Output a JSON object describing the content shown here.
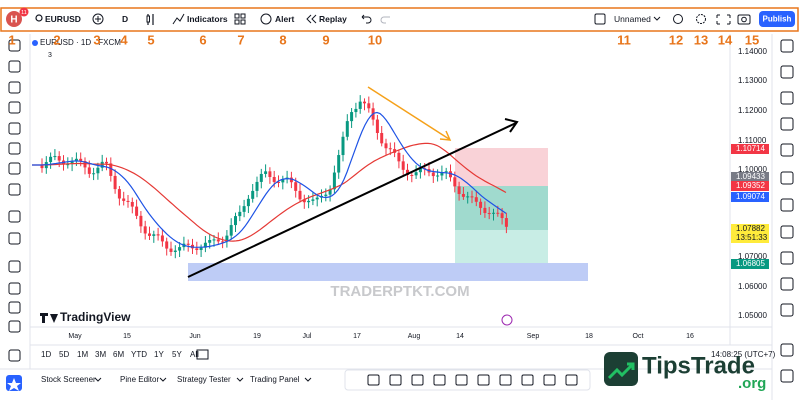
{
  "toolbar": {
    "avatar": "H",
    "badge": "11",
    "symbol": "EURUSD",
    "interval": "D",
    "indicators": "Indicators",
    "alert": "Alert",
    "replay": "Replay",
    "layout_name": "Unnamed",
    "publish": "Publish"
  },
  "annotations": [
    "1",
    "2",
    "3",
    "4",
    "5",
    "6",
    "7",
    "8",
    "9",
    "10",
    "11",
    "12",
    "13",
    "14",
    "15"
  ],
  "legend": {
    "symbol_line": "EURUSD · 1D · FXCM",
    "indicator_count": "3"
  },
  "price_axis": [
    "1.14000",
    "1.13000",
    "1.12000",
    "1.11000",
    "1.10000",
    "1.07000",
    "1.06000",
    "1.05000"
  ],
  "price_tags": [
    "1.10714",
    "1.09433",
    "1.09352",
    "1.09074",
    "1.07882",
    "13:51:33",
    "1.06805"
  ],
  "time_axis": [
    "May",
    "15",
    "Jun",
    "19",
    "Jul",
    "17",
    "Aug",
    "14",
    "Sep",
    "18",
    "Oct",
    "16"
  ],
  "watermark": "TRADERPTKT.COM",
  "logo": "TradingView",
  "range_buttons": [
    "1D",
    "5D",
    "1M",
    "3M",
    "6M",
    "YTD",
    "1Y",
    "5Y",
    "All"
  ],
  "clock": "14:08:25 (UTC+7)",
  "bottom_tabs": [
    "Stock Screener",
    "Pine Editor",
    "Strategy Tester",
    "Trading Panel"
  ],
  "brand": {
    "name": "TipsTrade",
    "suffix": ".org"
  }
}
